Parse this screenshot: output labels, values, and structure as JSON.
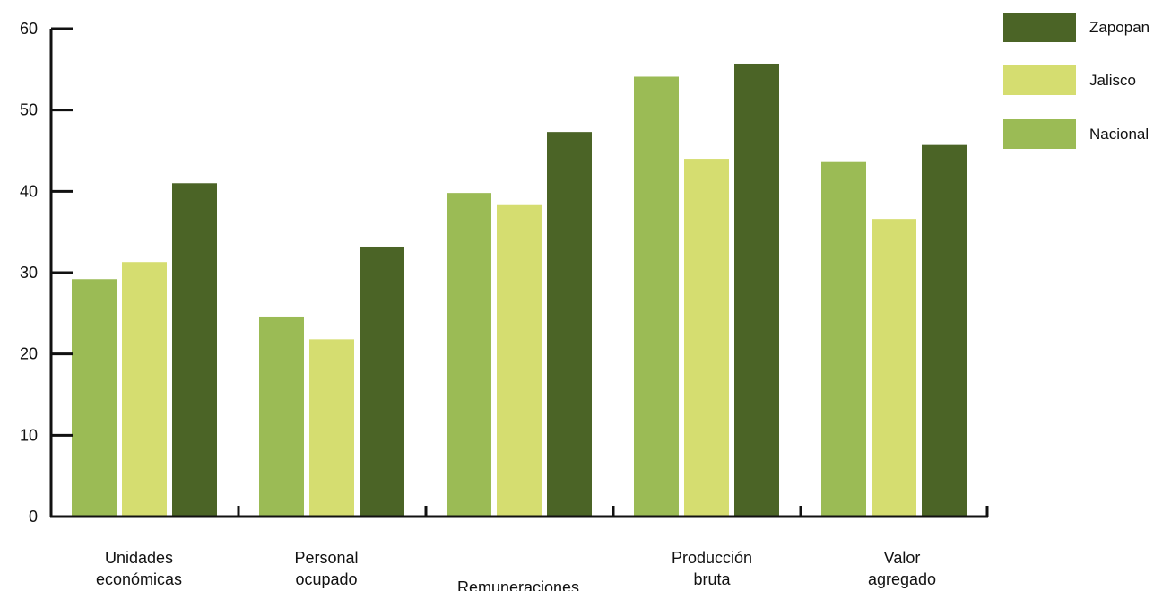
{
  "chart_data": {
    "type": "bar",
    "title": "",
    "xlabel": "",
    "ylabel": "",
    "ylim": [
      0,
      60
    ],
    "yticks": [
      0,
      10,
      20,
      30,
      40,
      50,
      60
    ],
    "grid": false,
    "legend_position": "top-right",
    "categories": [
      [
        "Unidades",
        "económicas"
      ],
      [
        "Personal",
        "ocupado"
      ],
      [
        "Remuneraciones"
      ],
      [
        "Producción",
        "bruta"
      ],
      [
        "Valor",
        "agregado"
      ]
    ],
    "series": [
      {
        "name": "Nacional",
        "color": "#9bbb55",
        "values": [
          29.2,
          24.6,
          39.8,
          54.1,
          43.6
        ]
      },
      {
        "name": "Jalisco",
        "color": "#d5dd70",
        "values": [
          31.3,
          21.8,
          38.3,
          44.0,
          36.6
        ]
      },
      {
        "name": "Zapopan",
        "color": "#4b6426",
        "values": [
          41.0,
          33.2,
          47.3,
          55.7,
          45.7
        ]
      }
    ],
    "legend_order": [
      "Zapopan",
      "Jalisco",
      "Nacional"
    ]
  }
}
